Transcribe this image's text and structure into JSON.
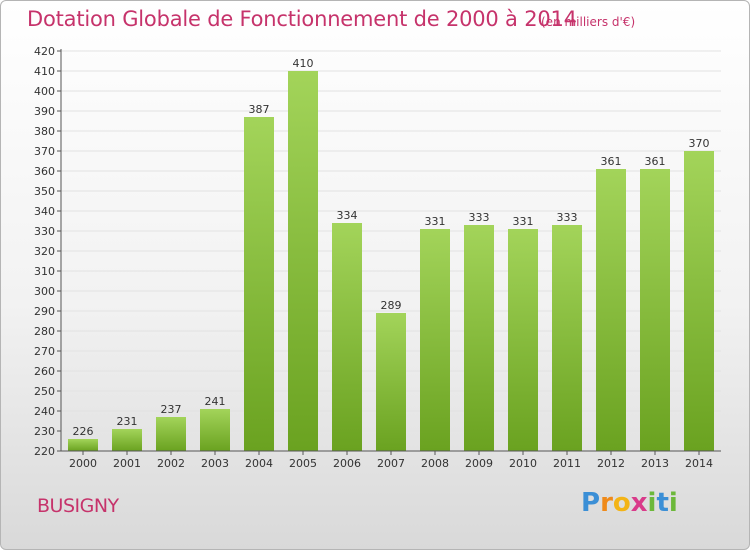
{
  "header": {
    "title": "Dotation Globale de Fonctionnement de 2000 à 2014",
    "unit": "(en milliers d'€)"
  },
  "footer": {
    "commune": "BUSIGNY",
    "logo": "Proxiti"
  },
  "colors": {
    "title": "#c6336b",
    "bar_light": "#a3d45a",
    "bar_dark": "#6aa220",
    "grid": "#e2e2e2",
    "axis": "#555555"
  },
  "chart_data": {
    "type": "bar",
    "title": "Dotation Globale de Fonctionnement de 2000 à 2014",
    "xlabel": "",
    "ylabel": "",
    "categories": [
      "2000",
      "2001",
      "2002",
      "2003",
      "2004",
      "2005",
      "2006",
      "2007",
      "2008",
      "2009",
      "2010",
      "2011",
      "2012",
      "2013",
      "2014"
    ],
    "values": [
      226,
      231,
      237,
      241,
      387,
      410,
      334,
      289,
      331,
      333,
      331,
      333,
      361,
      361,
      370
    ],
    "ylim": [
      220,
      420
    ],
    "ytick_step": 10,
    "grid": true,
    "data_labels": true
  }
}
